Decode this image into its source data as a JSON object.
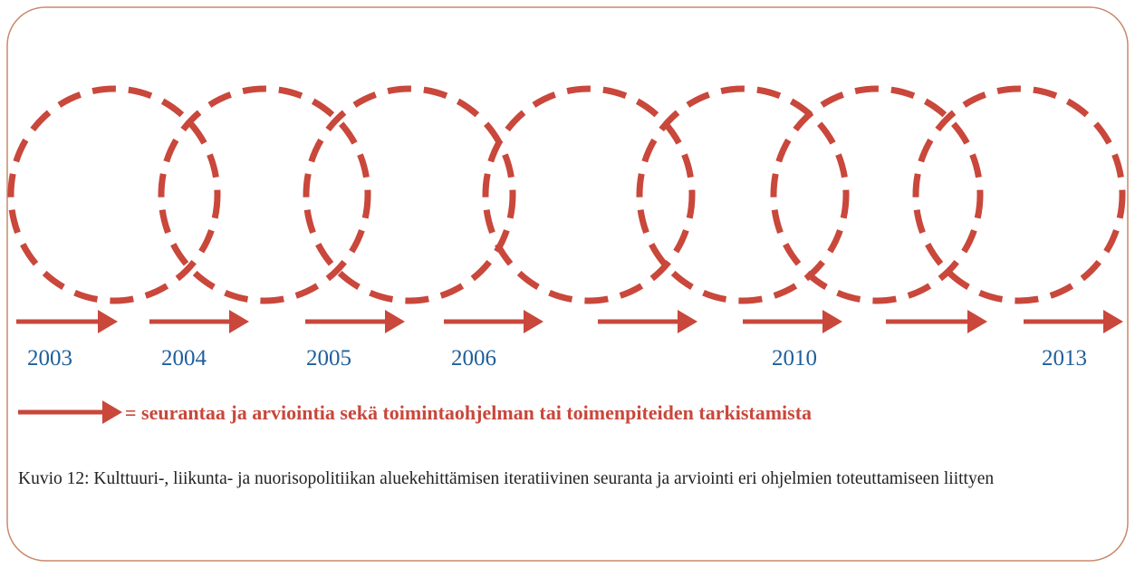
{
  "years": [
    "2003",
    "2004",
    "2005",
    "2006",
    "2010",
    "2013"
  ],
  "legend": "= seurantaa ja arviointia sekä toimintaohjelman tai toimenpiteiden tarkistamista",
  "caption": "Kuvio 12: Kulttuuri-, liikunta- ja nuorisopolitiikan aluekehittämisen iteratiivinen seuranta ja arviointi eri ohjelmien toteuttamiseen liittyen"
}
